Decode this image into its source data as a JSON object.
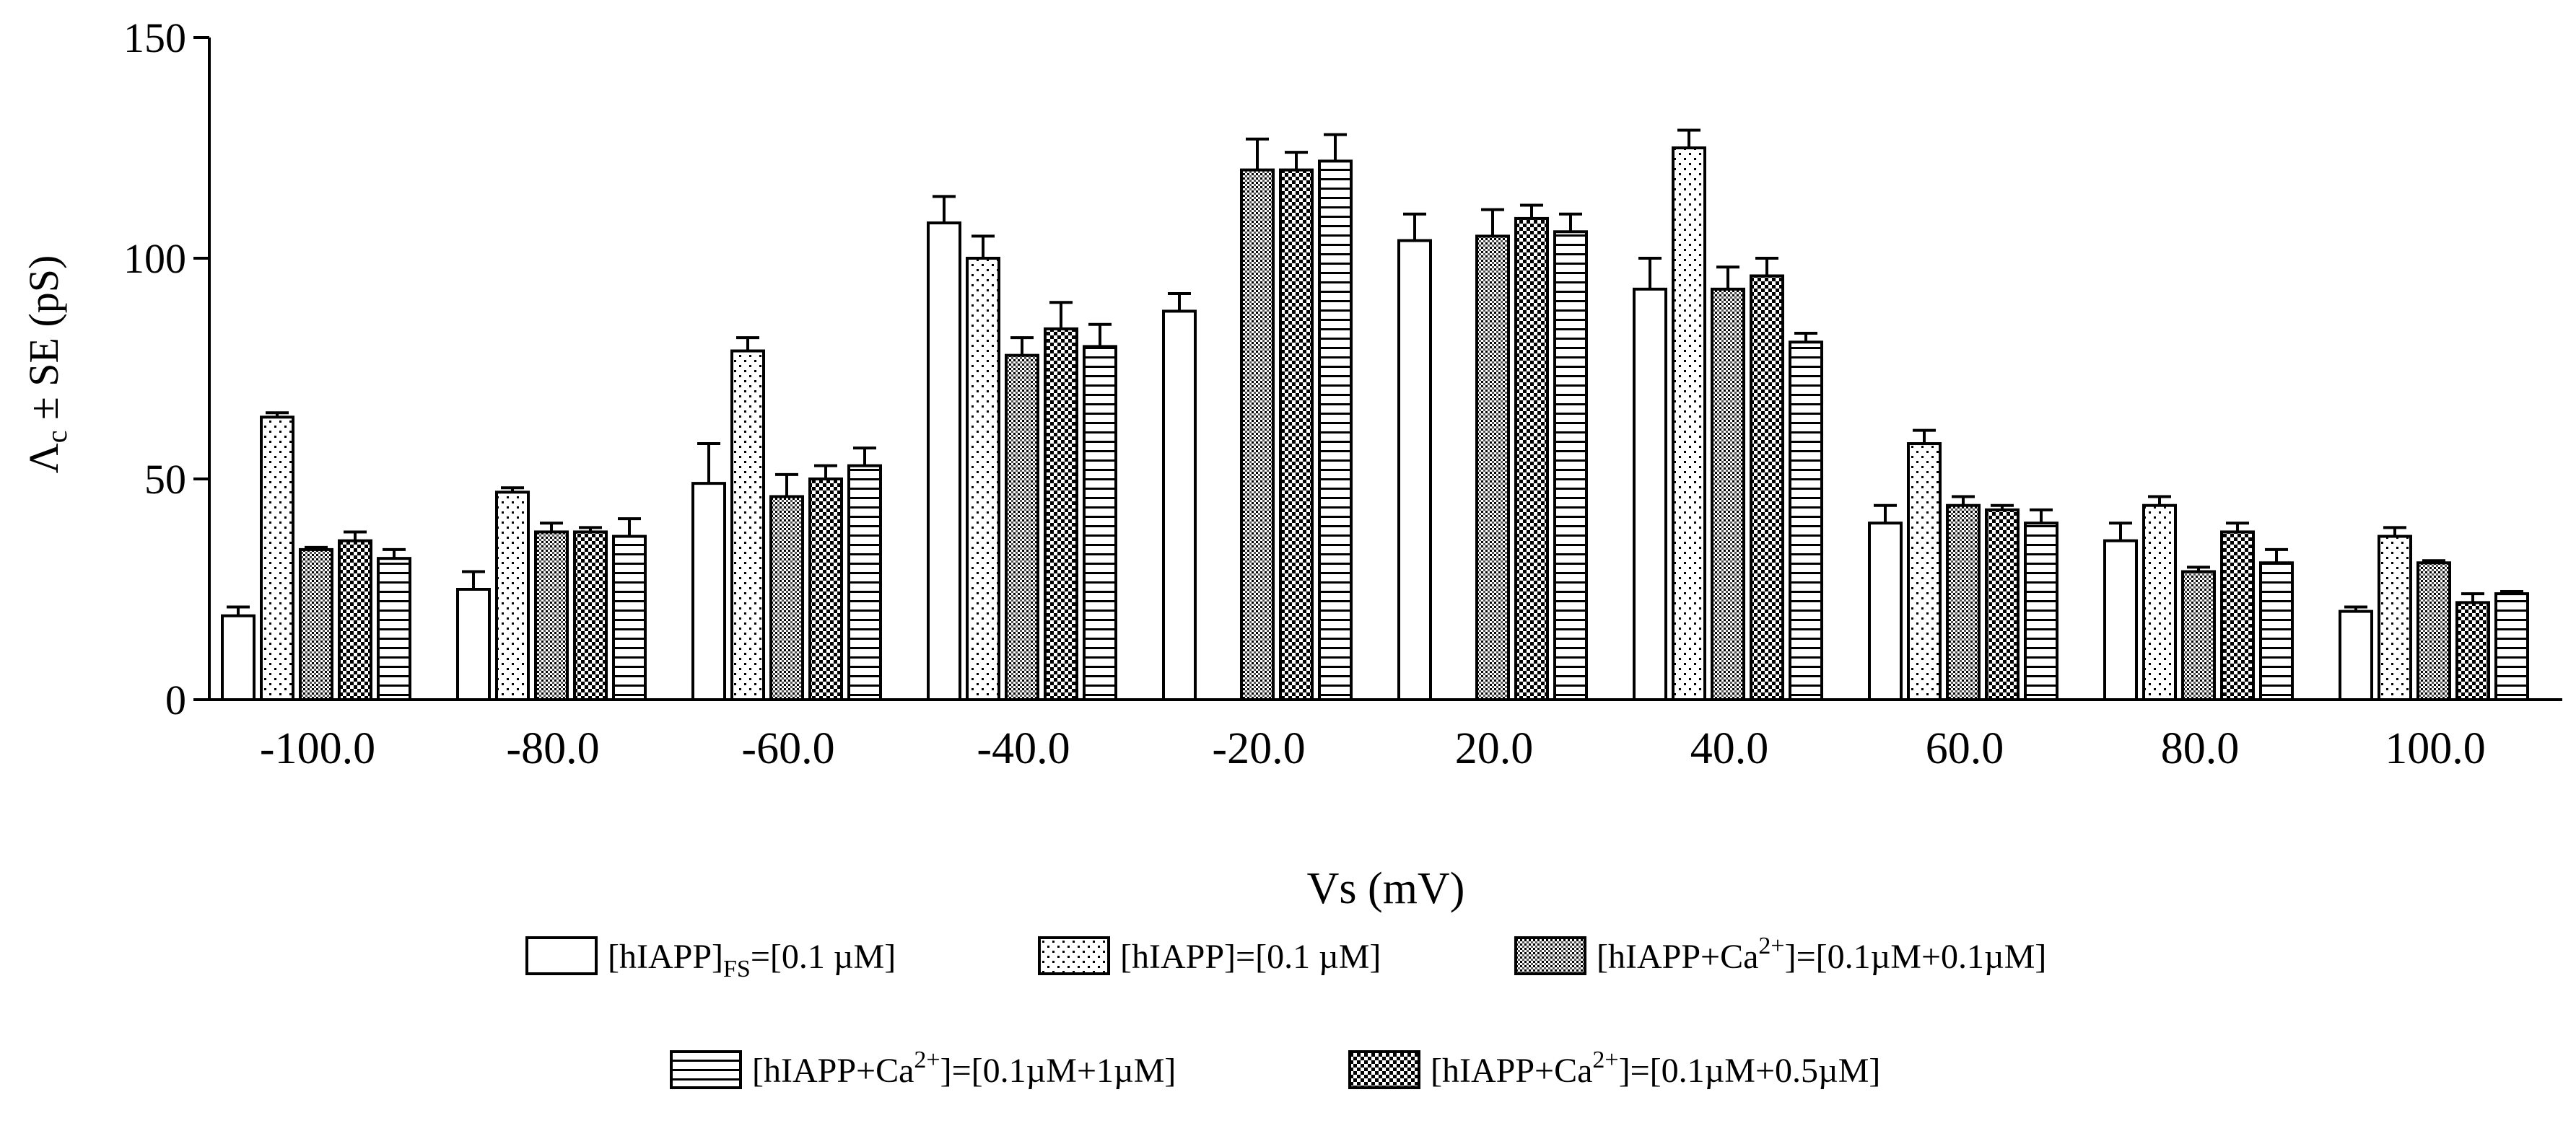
{
  "chart_data": {
    "type": "bar",
    "title": "",
    "xlabel": "Vs (mV)",
    "ylabel_main": "Λ",
    "ylabel_sub": "c",
    "ylabel_rest": " ± SE (pS)",
    "ylim": [
      0,
      150
    ],
    "yticks": [
      "0",
      "50",
      "100",
      "150"
    ],
    "categories": [
      "-100.0",
      "-80.0",
      "-60.0",
      "-40.0",
      "-20.0",
      "20.0",
      "40.0",
      "60.0",
      "80.0",
      "100.0"
    ],
    "series": [
      {
        "name": "[hIAPP]FS=[0.1 µM]",
        "label_main": "[hIAPP]",
        "label_sub": "FS",
        "label_rest": "=[0.1 µM]",
        "pattern": "white",
        "values": [
          19,
          25,
          49,
          108,
          88,
          104,
          93,
          40,
          36,
          20
        ],
        "errors": [
          2,
          4,
          9,
          6,
          4,
          6,
          7,
          4,
          4,
          1
        ]
      },
      {
        "name": "[hIAPP]=[0.1 µM]",
        "label_main": "[hIAPP]=[0.1 µM]",
        "pattern": "dots",
        "values": [
          64,
          47,
          79,
          100,
          0,
          0,
          125,
          58,
          44,
          37
        ],
        "errors": [
          1,
          1,
          3,
          5,
          0,
          0,
          4,
          3,
          2,
          2
        ]
      },
      {
        "name": "[hIAPP+Ca2+]=[0.1µM+0.1µM]",
        "label_main": "[hIAPP+Ca",
        "label_sup": "2+",
        "label_rest": "]=[0.1µM+0.1µM]",
        "pattern": "finegrid",
        "values": [
          34,
          38,
          46,
          78,
          120,
          105,
          93,
          44,
          29,
          31
        ],
        "errors": [
          0.5,
          2,
          5,
          4,
          7,
          6,
          5,
          2,
          1,
          0.5
        ]
      },
      {
        "name": "[hIAPP+Ca2+]=[0.1µM+0.5µM]",
        "label_main": "[hIAPP+Ca",
        "label_sup": "2+",
        "label_rest": "]=[0.1µM+0.5µM]",
        "pattern": "checker",
        "values": [
          36,
          38,
          50,
          84,
          120,
          109,
          96,
          43,
          38,
          22
        ],
        "errors": [
          2,
          1,
          3,
          6,
          4,
          3,
          4,
          1,
          2,
          2
        ]
      },
      {
        "name": "[hIAPP+Ca2+]=[0.1µM+1µM]",
        "label_main": "[hIAPP+Ca",
        "label_sup": "2+",
        "label_rest": "]=[0.1µM+1µM]",
        "pattern": "hlines",
        "values": [
          32,
          37,
          53,
          80,
          122,
          106,
          81,
          40,
          31,
          24
        ],
        "errors": [
          2,
          4,
          4,
          5,
          6,
          4,
          2,
          3,
          3,
          0.5
        ]
      }
    ],
    "legend_rows": [
      [
        0,
        1,
        2
      ],
      [
        4,
        3
      ]
    ]
  }
}
